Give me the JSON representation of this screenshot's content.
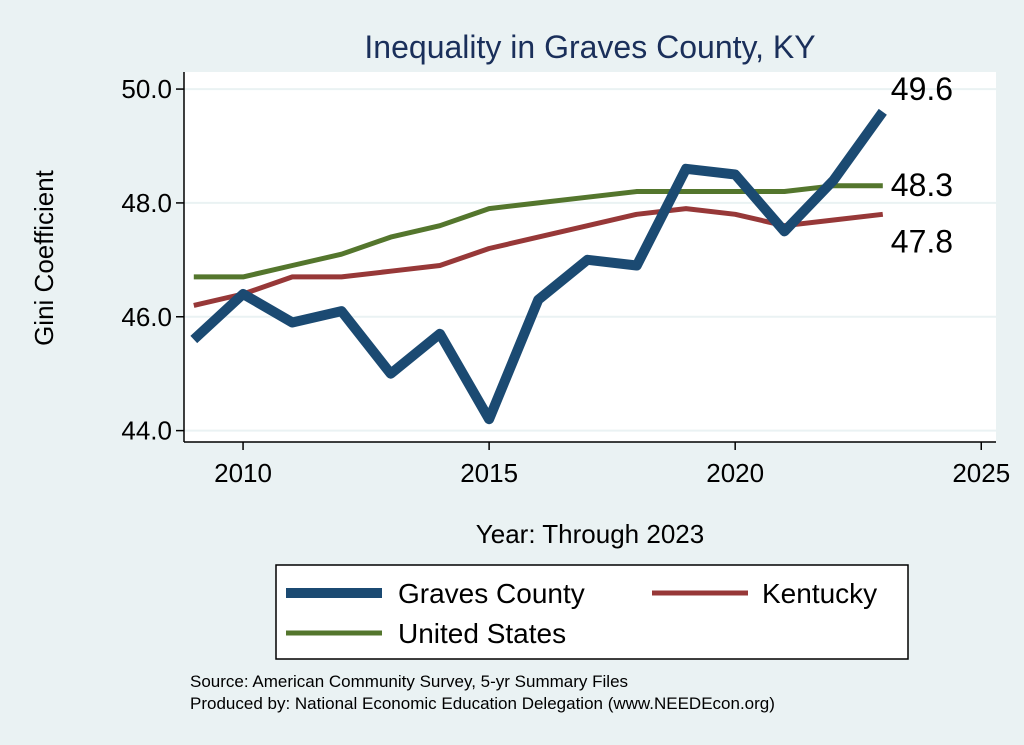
{
  "chart_data": {
    "type": "line",
    "title": "Inequality in Graves County, KY",
    "xlabel": "Year: Through 2023",
    "ylabel": "Gini Coefficient",
    "xlim": [
      2008.8,
      2025.3
    ],
    "ylim": [
      43.8,
      50.3
    ],
    "xticks": [
      2010,
      2015,
      2020,
      2025
    ],
    "yticks": [
      44.0,
      46.0,
      48.0,
      50.0
    ],
    "ytick_labels": [
      "44.0",
      "46.0",
      "48.0",
      "50.0"
    ],
    "grid": true,
    "x": [
      2009,
      2010,
      2011,
      2012,
      2013,
      2014,
      2015,
      2016,
      2017,
      2018,
      2019,
      2020,
      2021,
      2022,
      2023
    ],
    "series": [
      {
        "name": "Graves County",
        "color": "#1b4a72",
        "values": [
          45.6,
          46.4,
          45.9,
          46.1,
          45.0,
          45.7,
          44.2,
          46.3,
          47.0,
          46.9,
          48.6,
          48.5,
          47.5,
          48.4,
          49.6
        ],
        "end_label": "49.6"
      },
      {
        "name": "Kentucky",
        "color": "#973838",
        "values": [
          46.2,
          46.4,
          46.7,
          46.7,
          46.8,
          46.9,
          47.2,
          47.4,
          47.6,
          47.8,
          47.9,
          47.8,
          47.6,
          47.7,
          47.8
        ],
        "end_label": "47.8"
      },
      {
        "name": "United States",
        "color": "#54762d",
        "values": [
          46.7,
          46.7,
          46.9,
          47.1,
          47.4,
          47.6,
          47.9,
          48.0,
          48.1,
          48.2,
          48.2,
          48.2,
          48.2,
          48.3,
          48.3
        ],
        "end_label": "48.3"
      }
    ],
    "legend": {
      "position": "bottom",
      "entries": [
        "Graves County",
        "Kentucky",
        "United States"
      ]
    }
  },
  "source": {
    "line1": "Source: American Community Survey, 5-yr Summary Files",
    "line2": "Produced by: National Economic Education Delegation (www.NEEDEcon.org)"
  }
}
